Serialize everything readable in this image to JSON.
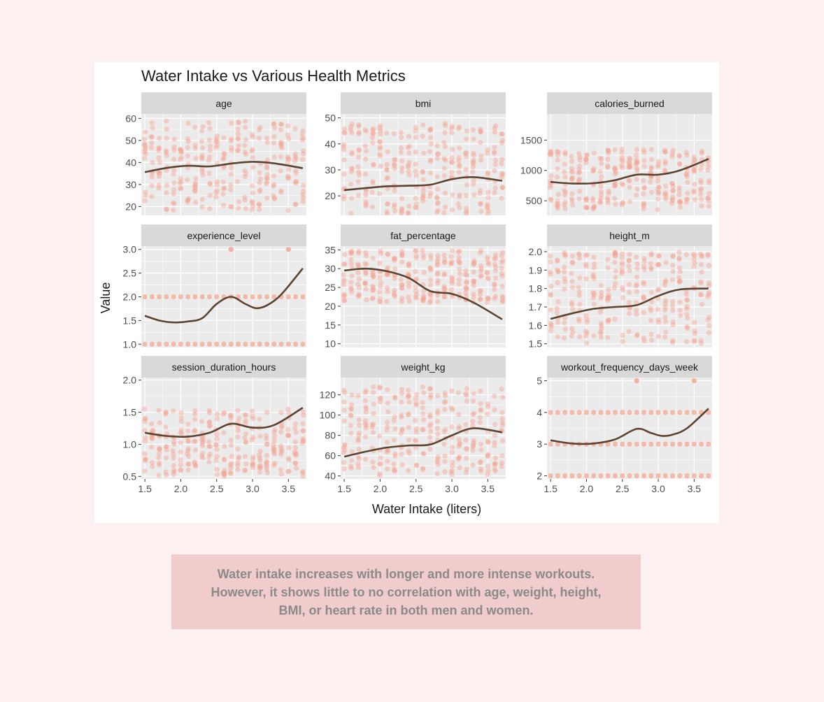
{
  "chart_data": {
    "type": "scatter",
    "title": "Water Intake vs Various Health Metrics",
    "xlabel": "Water Intake (liters)",
    "ylabel": "Value",
    "xlim": [
      1.45,
      3.75
    ],
    "x_ticks": [
      1.5,
      2.0,
      2.5,
      3.0,
      3.5
    ],
    "x_tick_labels": [
      "1.5",
      "2.0",
      "2.5",
      "3.0",
      "3.5"
    ],
    "grid": true,
    "colors": {
      "points": "#f5a592",
      "smooth": "#5c4330",
      "panel": "#ebebeb",
      "strip": "#d9d9d9",
      "grid": "#ffffff"
    },
    "panels": [
      {
        "metric": "age",
        "ylim": [
          16,
          62
        ],
        "y_ticks": [
          20,
          30,
          40,
          50,
          60
        ],
        "y_tick_labels": [
          "20",
          "30",
          "40",
          "50",
          "60"
        ],
        "point_range": [
          18,
          59
        ],
        "smooth": {
          "x": [
            1.5,
            1.8,
            2.1,
            2.4,
            2.7,
            3.0,
            3.3,
            3.7
          ],
          "y": [
            35.6,
            37.5,
            38.5,
            38.2,
            39.5,
            40.3,
            39.6,
            37.4
          ]
        }
      },
      {
        "metric": "bmi",
        "ylim": [
          12.5,
          51.5
        ],
        "y_ticks": [
          20,
          30,
          40,
          50
        ],
        "y_tick_labels": [
          "20",
          "30",
          "40",
          "50"
        ],
        "point_range": [
          13,
          48
        ],
        "smooth": {
          "x": [
            1.5,
            1.8,
            2.1,
            2.4,
            2.7,
            3.0,
            3.3,
            3.7
          ],
          "y": [
            22.2,
            23.0,
            23.7,
            23.9,
            24.3,
            26.4,
            27.2,
            25.8
          ]
        }
      },
      {
        "metric": "calories_burned",
        "ylim": [
          260,
          1930
        ],
        "y_ticks": [
          500,
          1000,
          1500
        ],
        "y_tick_labels": [
          "500",
          "1000",
          "1500"
        ],
        "point_range": [
          350,
          1350
        ],
        "smooth": {
          "x": [
            1.5,
            1.8,
            2.1,
            2.4,
            2.7,
            3.0,
            3.3,
            3.7
          ],
          "y": [
            810,
            785,
            790,
            840,
            930,
            930,
            1000,
            1190
          ]
        }
      },
      {
        "metric": "experience_level",
        "ylim": [
          0.93,
          3.07
        ],
        "y_ticks": [
          1.0,
          1.5,
          2.0,
          2.5,
          3.0
        ],
        "y_tick_labels": [
          "1.0",
          "1.5",
          "2.0",
          "2.5",
          "3.0"
        ],
        "discrete_levels": [
          1,
          2
        ],
        "smooth": {
          "x": [
            1.5,
            1.7,
            1.9,
            2.1,
            2.3,
            2.5,
            2.7,
            2.9,
            3.05,
            3.2,
            3.4,
            3.7
          ],
          "y": [
            1.6,
            1.5,
            1.46,
            1.48,
            1.55,
            1.85,
            2.0,
            1.85,
            1.76,
            1.82,
            2.05,
            2.6
          ]
        }
      },
      {
        "metric": "fat_percentage",
        "ylim": [
          9,
          36
        ],
        "y_ticks": [
          10,
          15,
          20,
          25,
          30,
          35
        ],
        "y_tick_labels": [
          "10",
          "15",
          "20",
          "25",
          "30",
          "35"
        ],
        "point_range": [
          21,
          35
        ],
        "smooth": {
          "x": [
            1.5,
            1.8,
            2.1,
            2.4,
            2.7,
            3.0,
            3.3,
            3.7
          ],
          "y": [
            29.5,
            30.0,
            29.3,
            27.5,
            24.0,
            23.3,
            21.0,
            16.5
          ]
        }
      },
      {
        "metric": "height_m",
        "ylim": [
          1.48,
          2.03
        ],
        "y_ticks": [
          1.5,
          1.6,
          1.7,
          1.8,
          1.9,
          2.0
        ],
        "y_tick_labels": [
          "1.5",
          "1.6",
          "1.7",
          "1.8",
          "1.9",
          "2.0"
        ],
        "point_range": [
          1.5,
          2.0
        ],
        "smooth": {
          "x": [
            1.5,
            1.8,
            2.1,
            2.4,
            2.7,
            3.0,
            3.3,
            3.7
          ],
          "y": [
            1.635,
            1.665,
            1.69,
            1.7,
            1.71,
            1.76,
            1.795,
            1.8
          ]
        }
      },
      {
        "metric": "session_duration_hours",
        "ylim": [
          0.46,
          2.04
        ],
        "y_ticks": [
          0.5,
          1.0,
          1.5,
          2.0
        ],
        "y_tick_labels": [
          "0.5",
          "1.0",
          "1.5",
          "2.0"
        ],
        "point_range": [
          0.5,
          1.55
        ],
        "smooth": {
          "x": [
            1.5,
            1.8,
            2.1,
            2.4,
            2.7,
            3.0,
            3.3,
            3.7
          ],
          "y": [
            1.18,
            1.13,
            1.12,
            1.18,
            1.32,
            1.26,
            1.3,
            1.57
          ]
        }
      },
      {
        "metric": "weight_kg",
        "ylim": [
          37,
          137
        ],
        "y_ticks": [
          40,
          60,
          80,
          100,
          120
        ],
        "y_tick_labels": [
          "40",
          "60",
          "80",
          "100",
          "120"
        ],
        "point_range": [
          40,
          128
        ],
        "smooth": {
          "x": [
            1.5,
            1.8,
            2.1,
            2.4,
            2.7,
            3.0,
            3.3,
            3.7
          ],
          "y": [
            59,
            64,
            68,
            70,
            71,
            80,
            87,
            83
          ]
        }
      },
      {
        "metric": "workout_frequency_days_week",
        "ylim": [
          1.9,
          5.1
        ],
        "y_ticks": [
          2,
          3,
          4,
          5
        ],
        "y_tick_labels": [
          "2",
          "3",
          "4",
          "5"
        ],
        "discrete_levels": [
          2,
          3,
          4
        ],
        "smooth": {
          "x": [
            1.5,
            1.8,
            2.1,
            2.4,
            2.7,
            2.9,
            3.05,
            3.2,
            3.4,
            3.7
          ],
          "y": [
            3.12,
            3.02,
            3.02,
            3.15,
            3.48,
            3.35,
            3.26,
            3.3,
            3.5,
            4.12
          ]
        }
      }
    ]
  },
  "caption": "Water intake increases with longer and more intense workouts. However, it shows little to no correlation with age, weight, height, BMI, or heart rate in both men and women."
}
